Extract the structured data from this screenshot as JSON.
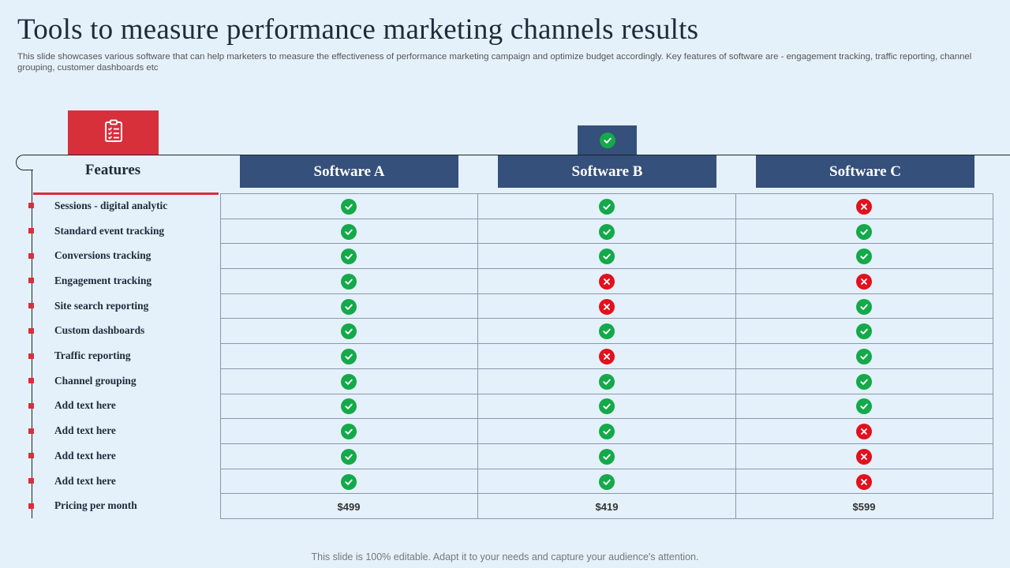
{
  "title": "Tools to measure performance marketing channels results",
  "subtitle": "This slide showcases various software that can help marketers to measure the effectiveness of performance marketing campaign and optimize budget accordingly. Key features of software are - engagement tracking, traffic reporting, channel grouping, customer dashboards etc",
  "features_header": "Features",
  "columns": [
    "Software A",
    "Software B",
    "Software C"
  ],
  "rows": [
    {
      "feature": "Sessions - digital analytic",
      "values": [
        "yes",
        "yes",
        "no"
      ]
    },
    {
      "feature": "Standard event tracking",
      "values": [
        "yes",
        "yes",
        "yes"
      ]
    },
    {
      "feature": "Conversions tracking",
      "values": [
        "yes",
        "yes",
        "yes"
      ]
    },
    {
      "feature": "Engagement tracking",
      "values": [
        "yes",
        "no",
        "no"
      ]
    },
    {
      "feature": "Site search reporting",
      "values": [
        "yes",
        "no",
        "yes"
      ]
    },
    {
      "feature": "Custom dashboards",
      "values": [
        "yes",
        "yes",
        "yes"
      ]
    },
    {
      "feature": "Traffic reporting",
      "values": [
        "yes",
        "no",
        "yes"
      ]
    },
    {
      "feature": "Channel grouping",
      "values": [
        "yes",
        "yes",
        "yes"
      ]
    },
    {
      "feature": "Add text here",
      "values": [
        "yes",
        "yes",
        "yes"
      ]
    },
    {
      "feature": "Add text here",
      "values": [
        "yes",
        "yes",
        "no"
      ]
    },
    {
      "feature": "Add text here",
      "values": [
        "yes",
        "yes",
        "no"
      ]
    },
    {
      "feature": "Add text here",
      "values": [
        "yes",
        "yes",
        "no"
      ]
    }
  ],
  "pricing": {
    "feature": "Pricing per month",
    "values": [
      "$499",
      "$419",
      "$599"
    ]
  },
  "footer": "This slide is 100% editable. Adapt it to your needs and capture your audience's attention.",
  "icons": {
    "header_icon": "clipboard-checklist-icon",
    "tab_icon": "check-circle-icon",
    "yes": "check-circle-icon",
    "no": "x-circle-icon"
  },
  "colors": {
    "accent_red": "#d7303b",
    "header_navy": "#35507a",
    "yes_green": "#14a94a",
    "no_red": "#e3101d",
    "background": "#e4f1fb"
  }
}
